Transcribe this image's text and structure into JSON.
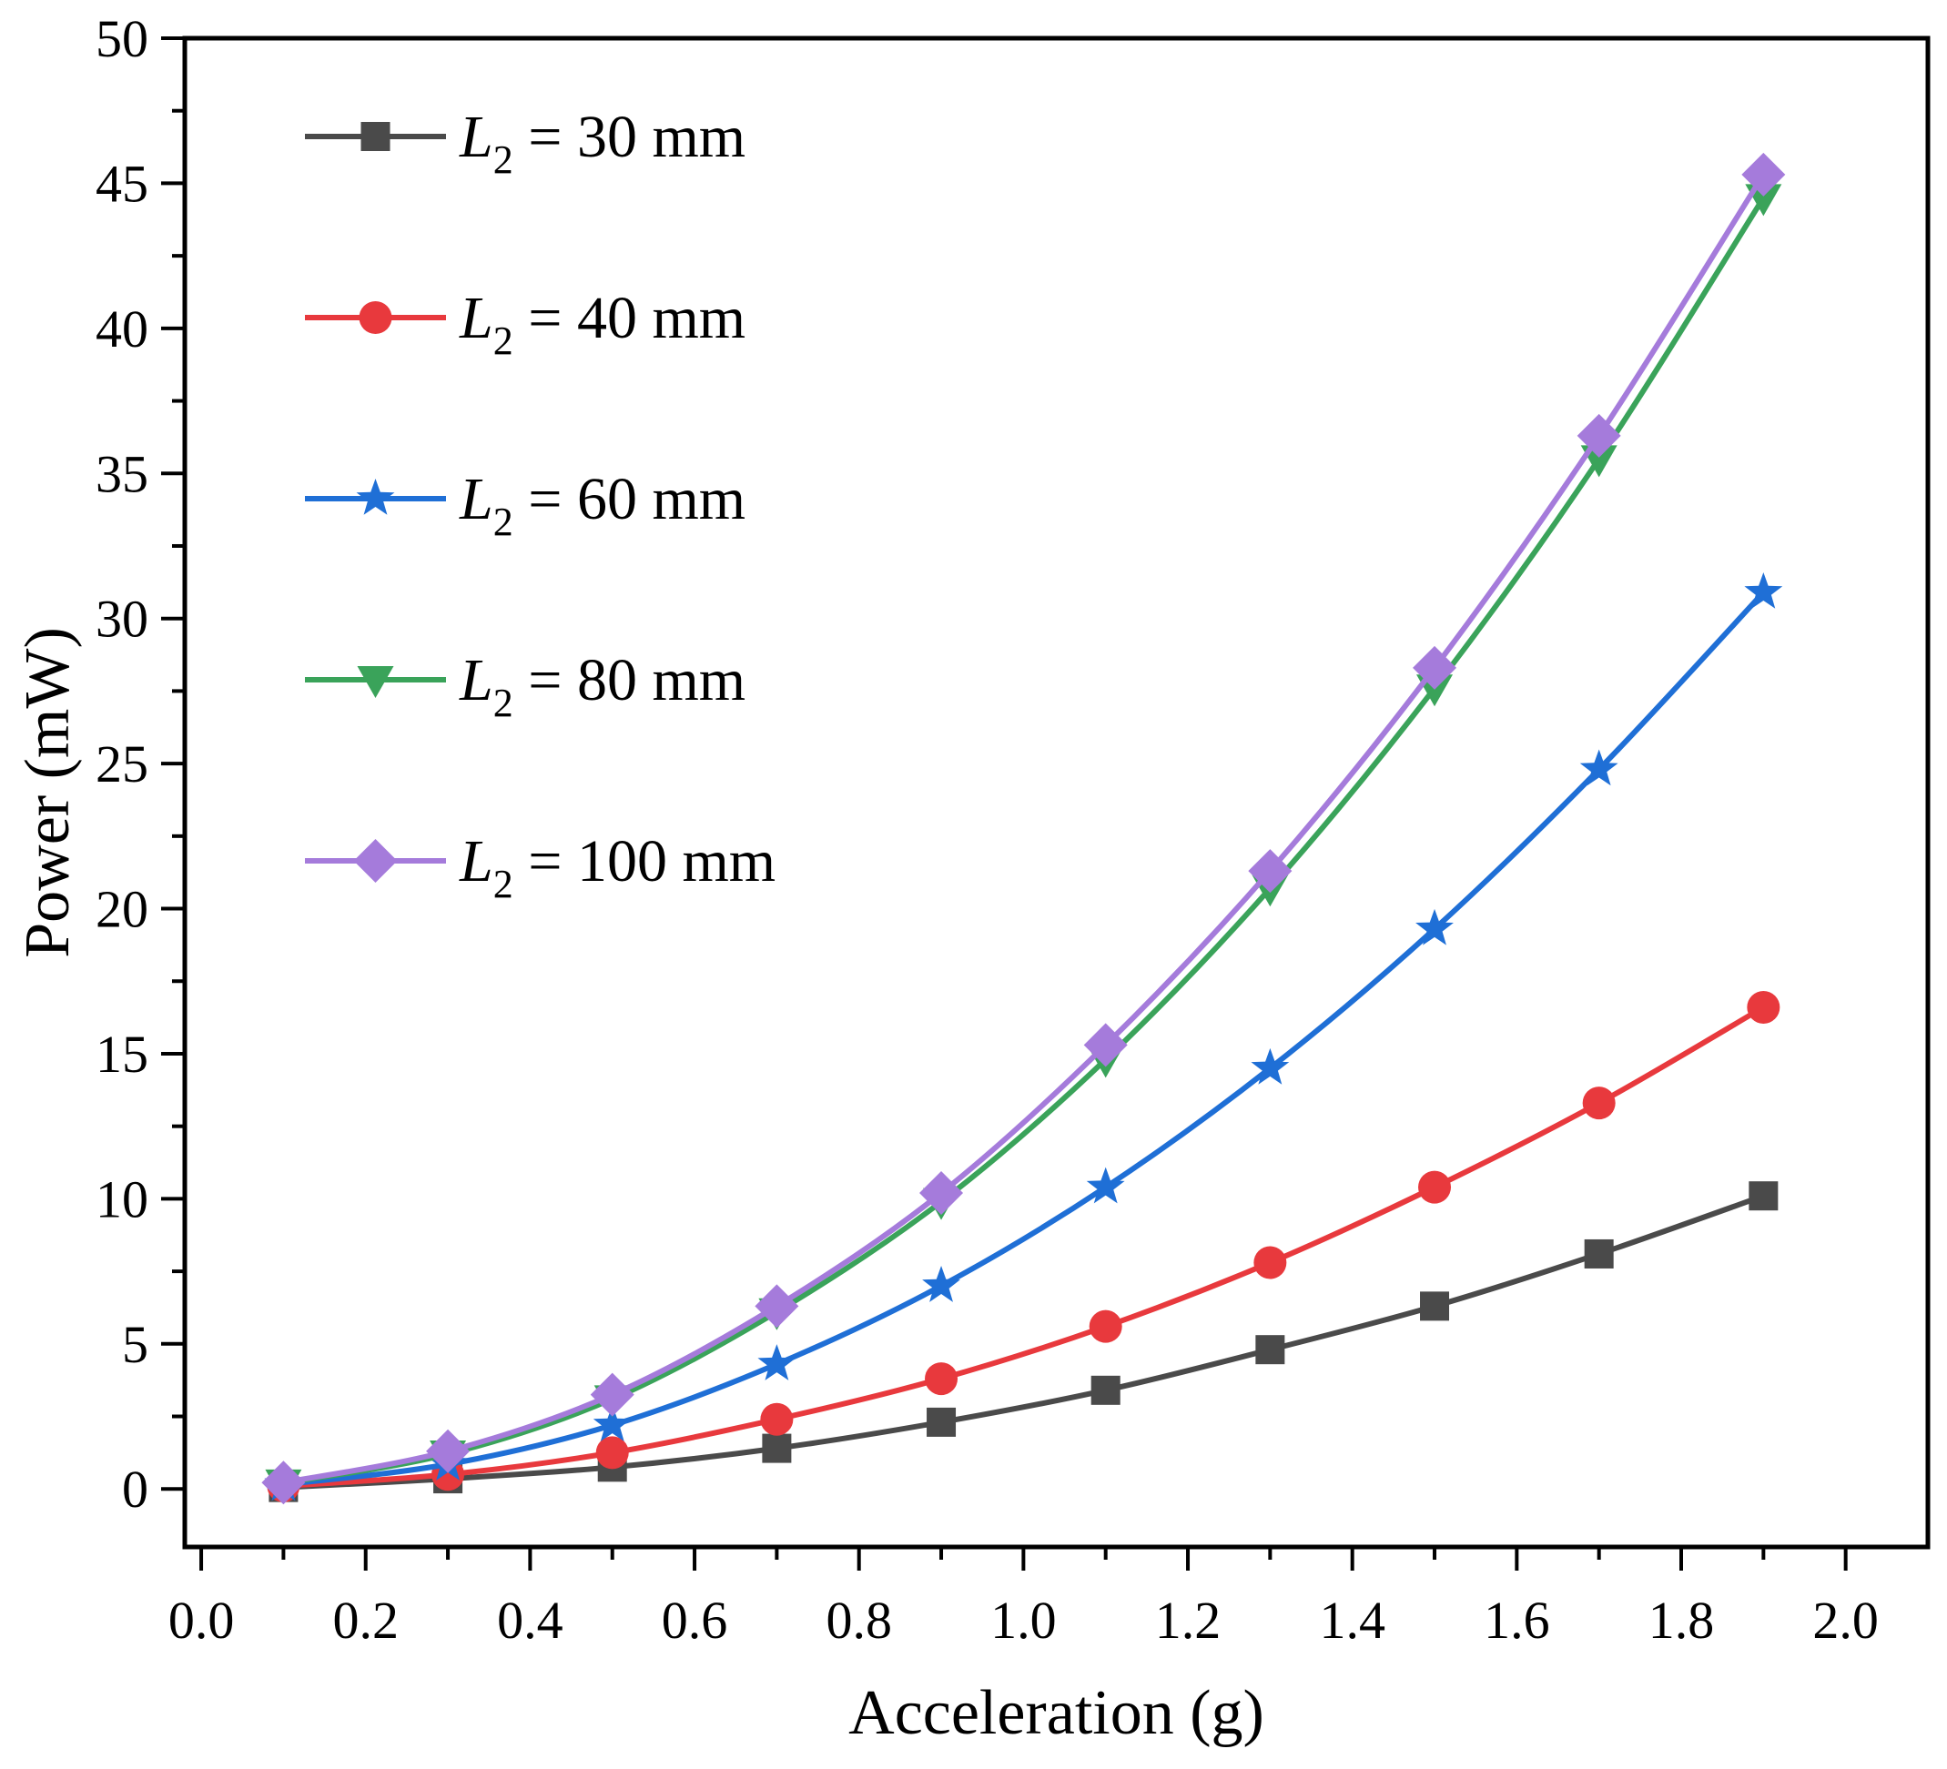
{
  "chart_data": {
    "type": "line",
    "title": "",
    "xlabel": "Acceleration (g)",
    "ylabel": "Power (mW)",
    "xlim": [
      -0.02,
      2.1
    ],
    "ylim": [
      -2,
      50
    ],
    "xticks": [
      "0.0",
      "0.2",
      "0.4",
      "0.6",
      "0.8",
      "1.0",
      "1.2",
      "1.4",
      "1.6",
      "1.8",
      "2.0"
    ],
    "yticks": [
      "0",
      "5",
      "10",
      "15",
      "20",
      "25",
      "30",
      "35",
      "40",
      "45",
      "50"
    ],
    "grid": false,
    "legend_position": "top-left",
    "x": [
      0.1,
      0.3,
      0.5,
      0.7,
      0.9,
      1.1,
      1.3,
      1.5,
      1.7,
      1.9
    ],
    "series": [
      {
        "name_prefix": "L",
        "name_sub": "2",
        "name_suffix": " = 30 mm",
        "color": "#4a4a4a",
        "marker": "square",
        "values": [
          0.05,
          0.35,
          0.75,
          1.4,
          2.3,
          3.4,
          4.8,
          6.3,
          8.1,
          10.1
        ]
      },
      {
        "name_prefix": "L",
        "name_sub": "2",
        "name_suffix": " = 40 mm",
        "color": "#e8393d",
        "marker": "circle",
        "values": [
          0.1,
          0.5,
          1.25,
          2.4,
          3.8,
          5.6,
          7.8,
          10.4,
          13.3,
          16.6
        ]
      },
      {
        "name_prefix": "L",
        "name_sub": "2",
        "name_suffix": " = 60 mm",
        "color": "#1f6fd6",
        "marker": "star",
        "values": [
          0.15,
          0.85,
          2.2,
          4.3,
          7.0,
          10.4,
          14.5,
          19.3,
          24.8,
          30.9
        ]
      },
      {
        "name_prefix": "L",
        "name_sub": "2",
        "name_suffix": " = 80 mm",
        "color": "#3aa35a",
        "marker": "triangle-down",
        "values": [
          0.2,
          1.2,
          3.1,
          6.1,
          9.9,
          14.8,
          20.7,
          27.6,
          35.5,
          44.5
        ]
      },
      {
        "name_prefix": "L",
        "name_sub": "2",
        "name_suffix": " = 100 mm",
        "color": "#a57bdb",
        "marker": "diamond",
        "values": [
          0.22,
          1.3,
          3.25,
          6.3,
          10.2,
          15.3,
          21.3,
          28.3,
          36.3,
          45.3
        ]
      }
    ]
  }
}
